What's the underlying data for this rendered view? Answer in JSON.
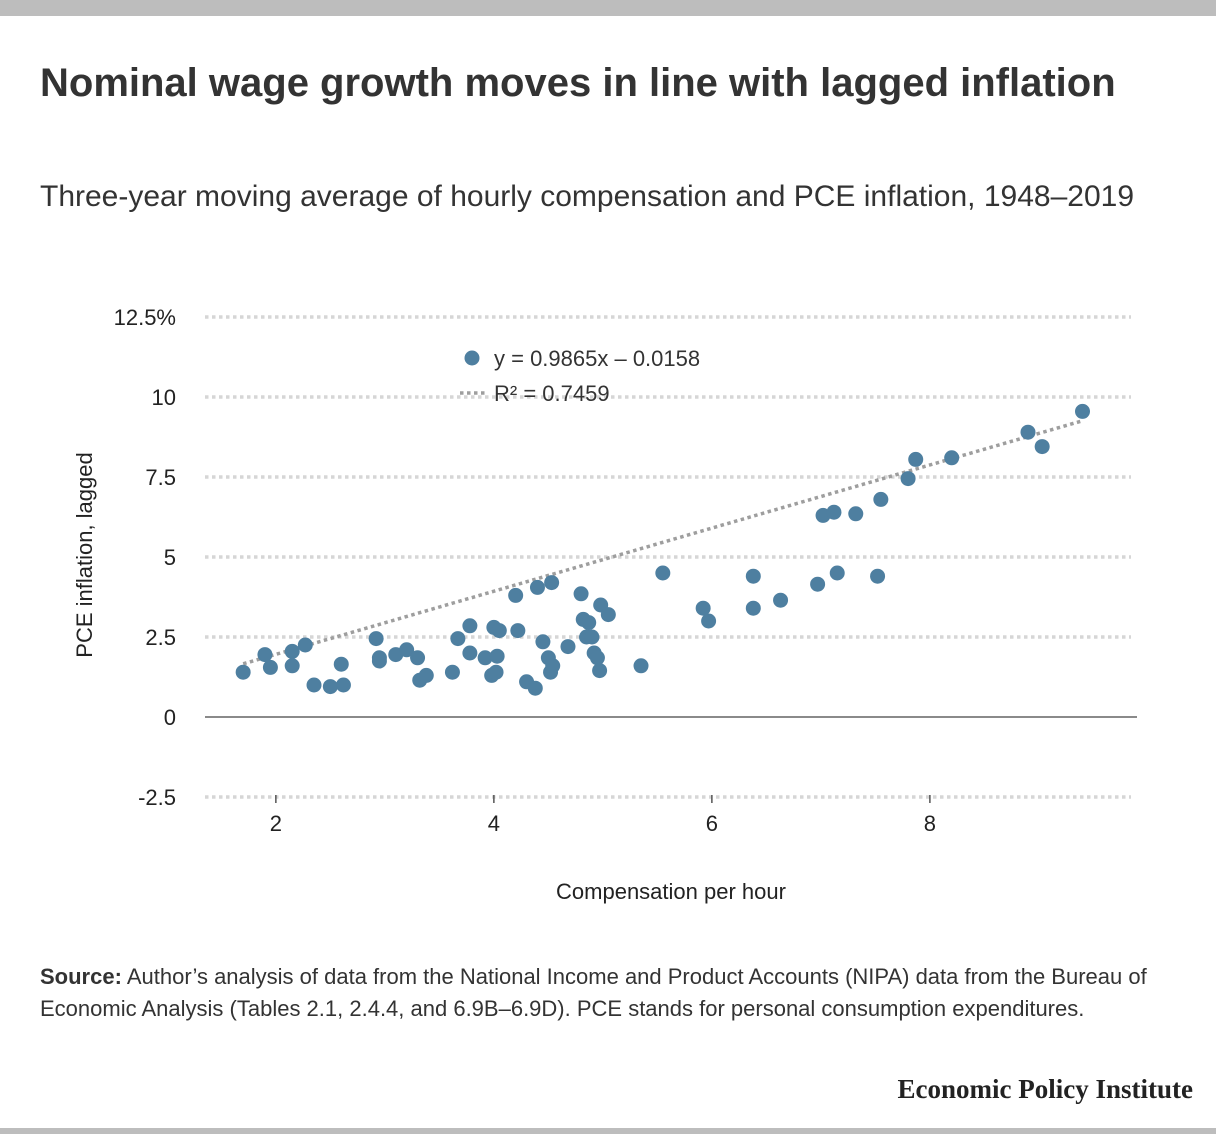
{
  "header": {
    "title": "Nominal wage growth moves in line with lagged inflation",
    "subtitle": "Three-year moving average of hourly compensation and PCE inflation, 1948–2019"
  },
  "footer": {
    "source_label": "Source:",
    "source_text": "Author’s analysis of  data from the National Income and Product Accounts (NIPA) data from the Bureau of Economic Analysis (Tables 2.1, 2.4.4, and 6.9B–6.9D). PCE stands for personal consumption expenditures.",
    "brand": "Economic Policy Institute"
  },
  "chart_data": {
    "type": "scatter",
    "title": "Nominal wage growth moves in line with lagged inflation",
    "subtitle": "Three-year moving average of hourly compensation and PCE inflation, 1948–2019",
    "xlabel": "Compensation per hour",
    "ylabel": "PCE inflation, lagged",
    "xlim": [
      1.35,
      9.9
    ],
    "ylim": [
      -2.5,
      12.5
    ],
    "x_ticks": [
      2,
      4,
      6,
      8
    ],
    "y_ticks": [
      -2.5,
      0,
      2.5,
      5,
      7.5,
      10,
      12.5
    ],
    "y_tick_labels": [
      "-2.5",
      "0",
      "2.5",
      "5",
      "7.5",
      "10",
      "12.5%"
    ],
    "grid": "horizontal dotted",
    "legend": {
      "position": "top-left",
      "points_label": "y = 0.9865x – 0.0158",
      "trend_label": "R² = 0.7459"
    },
    "trendline": {
      "slope": 0.9865,
      "intercept": -0.0158,
      "x_range": [
        1.7,
        9.4
      ],
      "r_squared": 0.7459
    },
    "colors": {
      "points": "#4e7fa0",
      "trendline": "#9e9e9e",
      "grid": "#d6d6d6",
      "zero_line": "#8a8a8a"
    },
    "points": [
      [
        1.7,
        1.4
      ],
      [
        1.9,
        1.95
      ],
      [
        1.95,
        1.55
      ],
      [
        2.15,
        2.05
      ],
      [
        2.15,
        1.6
      ],
      [
        2.27,
        2.25
      ],
      [
        2.35,
        1.0
      ],
      [
        2.5,
        0.95
      ],
      [
        2.6,
        1.65
      ],
      [
        2.62,
        1.0
      ],
      [
        2.92,
        2.45
      ],
      [
        2.95,
        1.85
      ],
      [
        2.95,
        1.75
      ],
      [
        3.1,
        1.95
      ],
      [
        3.2,
        2.1
      ],
      [
        3.3,
        1.85
      ],
      [
        3.32,
        1.15
      ],
      [
        3.38,
        1.3
      ],
      [
        3.62,
        1.4
      ],
      [
        3.67,
        2.45
      ],
      [
        3.78,
        2.85
      ],
      [
        3.78,
        2.0
      ],
      [
        3.92,
        1.85
      ],
      [
        3.98,
        1.3
      ],
      [
        4.0,
        2.8
      ],
      [
        4.02,
        1.4
      ],
      [
        4.03,
        1.9
      ],
      [
        4.05,
        2.7
      ],
      [
        4.2,
        3.8
      ],
      [
        4.22,
        2.7
      ],
      [
        4.3,
        1.1
      ],
      [
        4.38,
        0.9
      ],
      [
        4.4,
        4.05
      ],
      [
        4.45,
        2.35
      ],
      [
        4.5,
        1.85
      ],
      [
        4.52,
        1.4
      ],
      [
        4.53,
        4.2
      ],
      [
        4.54,
        1.6
      ],
      [
        4.68,
        2.2
      ],
      [
        4.8,
        3.85
      ],
      [
        4.82,
        3.05
      ],
      [
        4.85,
        2.5
      ],
      [
        4.87,
        2.95
      ],
      [
        4.9,
        2.5
      ],
      [
        4.92,
        2.0
      ],
      [
        4.95,
        1.85
      ],
      [
        4.97,
        1.45
      ],
      [
        4.98,
        3.5
      ],
      [
        5.05,
        3.2
      ],
      [
        5.35,
        1.6
      ],
      [
        5.55,
        4.5
      ],
      [
        5.92,
        3.4
      ],
      [
        5.97,
        3.0
      ],
      [
        6.38,
        4.4
      ],
      [
        6.38,
        3.4
      ],
      [
        6.63,
        3.65
      ],
      [
        6.97,
        4.15
      ],
      [
        7.02,
        6.3
      ],
      [
        7.12,
        6.4
      ],
      [
        7.15,
        4.5
      ],
      [
        7.32,
        6.35
      ],
      [
        7.52,
        4.4
      ],
      [
        7.55,
        6.8
      ],
      [
        7.8,
        7.45
      ],
      [
        7.87,
        8.05
      ],
      [
        8.2,
        8.1
      ],
      [
        8.9,
        8.9
      ],
      [
        9.03,
        8.45
      ],
      [
        9.4,
        9.55
      ]
    ]
  }
}
